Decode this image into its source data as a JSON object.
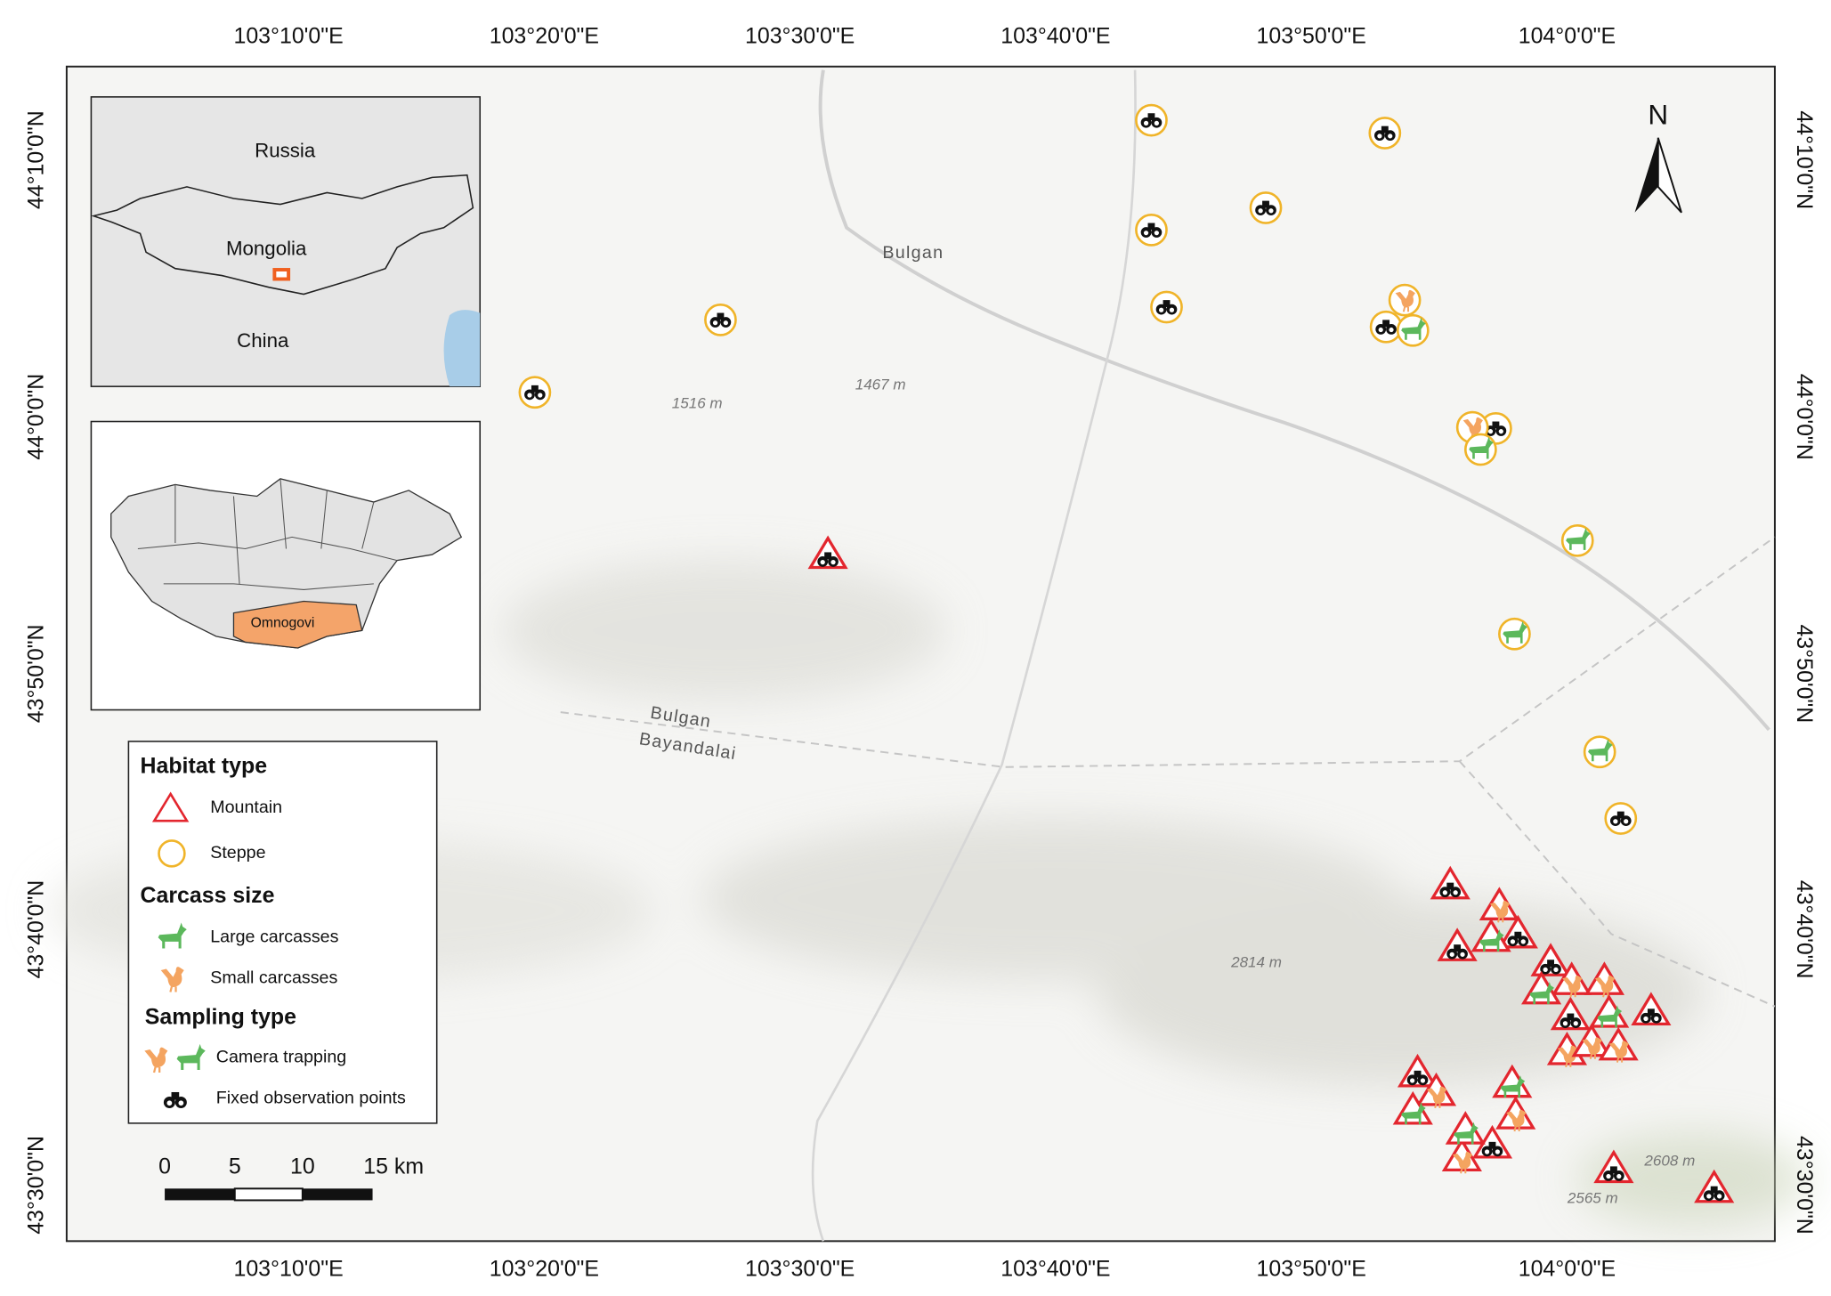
{
  "map": {
    "longitude_labels": [
      "103°10'0\"E",
      "103°20'0\"E",
      "103°30'0\"E",
      "103°40'0\"E",
      "103°50'0\"E",
      "104°0'0\"E"
    ],
    "latitude_labels": [
      "44°10'0\"N",
      "44°0'0\"N",
      "43°50'0\"N",
      "43°40'0\"N",
      "43°30'0\"N"
    ],
    "places": [
      "Bulgan",
      "Bulgan",
      "Bayandalai"
    ],
    "elevations": [
      "1516 m",
      "1467 m",
      "2814 m",
      "2608 m",
      "2565 m"
    ]
  },
  "inset_country": {
    "labels": [
      "Russia",
      "Mongolia",
      "China"
    ]
  },
  "inset_province": {
    "label": "Omnogovi"
  },
  "legend": {
    "habitat_title": "Habitat type",
    "mountain": "Mountain",
    "steppe": "Steppe",
    "carcass_title": "Carcass size",
    "large": "Large carcasses",
    "small": "Small carcasses",
    "sampling_title": "Sampling type",
    "camera": "Camera trapping",
    "fixed": "Fixed observation points"
  },
  "scale_bar": {
    "labels": [
      "0",
      "5",
      "10",
      "15 km"
    ]
  },
  "north_arrow": "N"
}
